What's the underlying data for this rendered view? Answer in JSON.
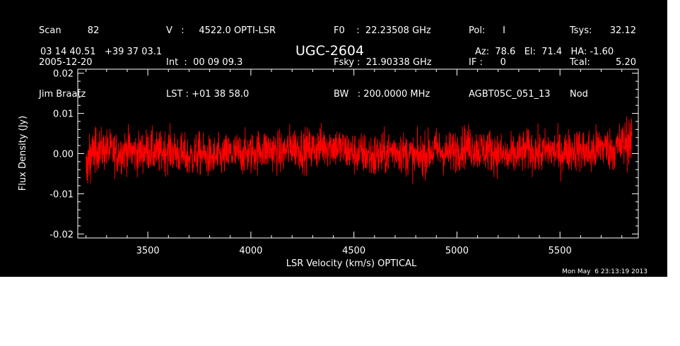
{
  "header": {
    "col1": [
      "Scan         82",
      "2005-12-20",
      "Jim Braatz"
    ],
    "col2": [
      "V   :     4522.0 OPTI-LSR",
      "Int  :  00 09 09.3",
      "LST : +01 38 58.0"
    ],
    "col3": [
      "F0    :  22.23508 GHz",
      "Fsky :  21.90338 GHz",
      "BW   : 200.0000 MHz"
    ],
    "col4": [
      "Pol:      I",
      "IF :      0",
      "AGBT05C_051_13"
    ],
    "col5": [
      "Tsys:",
      "Tcal:",
      "Nod"
    ],
    "col6": [
      "32.12",
      "5.20",
      ""
    ],
    "coords": "03 14 40.51   +39 37 03.1",
    "source": "UGC-2604",
    "pointing": "Az:  78.6   El:  71.4   HA: -1.60",
    "timestamp": "Mon May  6 23:13:19 2013"
  },
  "chart_data": {
    "type": "line",
    "xlabel": "LSR Velocity (km/s) OPTICAL",
    "ylabel": "Flux Density (Jy)",
    "xlim": [
      3160,
      5880
    ],
    "ylim": [
      -0.021,
      0.021
    ],
    "x_ticks": [
      3500,
      4000,
      4500,
      5000,
      5500
    ],
    "x_tick_labels": [
      "3500",
      "4000",
      "4500",
      "5000",
      "5500"
    ],
    "y_ticks": [
      -0.02,
      -0.01,
      0.0,
      0.01,
      0.02
    ],
    "y_tick_labels": [
      "-0.02",
      "-0.01",
      "0.00",
      "0.01",
      "0.02"
    ],
    "series": [
      {
        "color": "#ff0000",
        "x": [
          3200,
          3225,
          3250,
          3300,
          3350,
          3400,
          3450,
          3500,
          3550,
          3600,
          3650,
          3700,
          3750,
          3800,
          3850,
          3900,
          3950,
          4000,
          4050,
          4100,
          4150,
          4200,
          4250,
          4300,
          4350,
          4400,
          4450,
          4500,
          4550,
          4600,
          4650,
          4700,
          4750,
          4800,
          4850,
          4900,
          4950,
          5000,
          5050,
          5100,
          5150,
          5200,
          5250,
          5300,
          5350,
          5400,
          5450,
          5500,
          5550,
          5600,
          5650,
          5700,
          5750,
          5800,
          5850
        ],
        "y": [
          -0.004,
          0.0,
          0.001,
          0.001,
          0.0,
          0.001,
          0.0,
          0.001,
          0.0,
          0.001,
          0.0,
          -0.001,
          0.0,
          -0.001,
          -0.001,
          0.0,
          0.0,
          0.0,
          0.001,
          0.001,
          0.0,
          0.002,
          0.001,
          0.001,
          0.002,
          0.002,
          0.001,
          0.0,
          0.0,
          -0.001,
          0.0,
          0.001,
          0.0,
          -0.001,
          0.0,
          0.001,
          0.0,
          0.001,
          0.002,
          0.001,
          0.001,
          0.0,
          -0.001,
          0.0,
          0.001,
          0.0,
          0.001,
          0.0,
          0.001,
          0.001,
          0.0,
          0.002,
          0.001,
          0.002,
          0.004
        ],
        "spread": [
          0.006,
          0.005,
          0.005,
          0.005,
          0.005,
          0.005,
          0.005,
          0.005,
          0.005,
          0.005,
          0.005,
          0.005,
          0.005,
          0.005,
          0.005,
          0.005,
          0.005,
          0.005,
          0.005,
          0.005,
          0.005,
          0.005,
          0.005,
          0.005,
          0.005,
          0.005,
          0.005,
          0.005,
          0.005,
          0.006,
          0.005,
          0.005,
          0.005,
          0.005,
          0.005,
          0.005,
          0.005,
          0.005,
          0.005,
          0.005,
          0.005,
          0.005,
          0.005,
          0.005,
          0.005,
          0.005,
          0.005,
          0.005,
          0.005,
          0.005,
          0.006,
          0.005,
          0.005,
          0.006,
          0.006
        ]
      }
    ]
  }
}
